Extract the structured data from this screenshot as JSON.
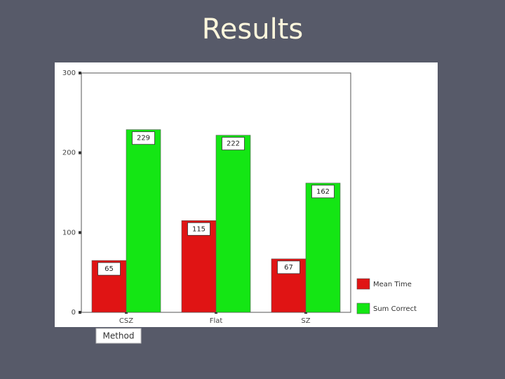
{
  "chart_data": {
    "type": "bar",
    "title": "Results",
    "categories": [
      "CSZ",
      "Flat",
      "SZ"
    ],
    "series": [
      {
        "name": "Mean Time",
        "color": "#e01414",
        "values": [
          65,
          115,
          67
        ]
      },
      {
        "name": "Sum Correct",
        "color": "#14e614",
        "values": [
          229,
          222,
          162
        ]
      }
    ],
    "ylim": [
      0,
      300
    ],
    "yticks": [
      0,
      100,
      200,
      300
    ],
    "x_label": "Method",
    "legend": "right",
    "value_labels_shown": true
  }
}
